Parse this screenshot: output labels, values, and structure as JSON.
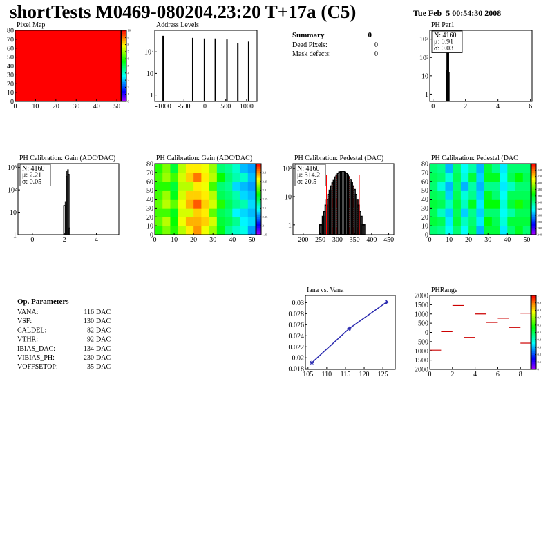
{
  "header": {
    "title": "shortTests M0469-080204.23:20 T+17a (C5)",
    "date": "Tue Feb  5 00:54:30 2008"
  },
  "summary": {
    "title": "Summary",
    "total": 0,
    "rows": [
      {
        "label": "Dead Pixels:",
        "value": 0
      },
      {
        "label": "Mask defects:",
        "value": 0
      }
    ]
  },
  "op_parameters": {
    "title": "Op. Parameters",
    "rows": [
      {
        "name": "VANA:",
        "value": 116,
        "unit": "DAC"
      },
      {
        "name": "VSF:",
        "value": 130,
        "unit": "DAC"
      },
      {
        "name": "CALDEL:",
        "value": 82,
        "unit": "DAC"
      },
      {
        "name": "VTHR:",
        "value": 92,
        "unit": "DAC"
      },
      {
        "name": "IBIAS_DAC:",
        "value": 134,
        "unit": "DAC"
      },
      {
        "name": "VIBIAS_PH:",
        "value": 230,
        "unit": "DAC"
      },
      {
        "name": "VOFFSETOP:",
        "value": 35,
        "unit": "DAC"
      }
    ]
  },
  "chart_data": [
    {
      "type": "heatmap",
      "title": "Pixel Map",
      "xlim": [
        0,
        52
      ],
      "ylim": [
        0,
        80
      ],
      "xticks": [
        0,
        10,
        20,
        30,
        40,
        50
      ],
      "yticks": [
        0,
        10,
        20,
        30,
        40,
        50,
        60,
        70,
        80
      ],
      "xbins": [
        0,
        52
      ],
      "ybins": [
        0,
        80
      ],
      "z": [
        [
          10
        ]
      ],
      "zlim": [
        0,
        10
      ],
      "zticks": [
        0,
        1,
        2,
        3,
        4,
        5,
        6,
        7,
        8,
        9,
        10
      ]
    },
    {
      "type": "spikes",
      "title": "Address Levels",
      "log_y": true,
      "xlim": [
        -1200,
        1250
      ],
      "ylim": [
        0.5,
        1000
      ],
      "xticks": [
        -1000,
        -500,
        0,
        500,
        1000
      ],
      "yticks": [
        1,
        10,
        {
          "value": 100,
          "label": "10²"
        }
      ],
      "x": [
        -1000,
        -290,
        -10,
        250,
        530,
        790,
        1050
      ],
      "values": [
        560,
        450,
        420,
        420,
        380,
        260,
        300
      ],
      "color": "#000000"
    },
    {
      "type": "histogram",
      "title": "PH Par1",
      "log_y": true,
      "xlim": [
        -0.2,
        6.1
      ],
      "ylim": [
        0.4,
        3000
      ],
      "xticks": [
        0,
        2,
        4,
        6
      ],
      "yticks": [
        1,
        10,
        {
          "value": 100,
          "label": "10²"
        },
        {
          "value": 1000,
          "label": "10³"
        }
      ],
      "bins": [
        0.82,
        0.85,
        0.88,
        0.91,
        0.94,
        0.97,
        1.0
      ],
      "values": [
        20,
        450,
        480,
        470,
        300,
        15
      ],
      "stats": [
        {
          "text": "N: 4160",
          "color": "#000000"
        },
        {
          "text": "μ: 0.91",
          "color": "#000000"
        },
        {
          "text": "σ: 0.03",
          "color": "#000000"
        }
      ]
    },
    {
      "type": "histogram",
      "title": "PH Calibration: Gain (ADC/DAC)",
      "log_y": true,
      "xlim": [
        -0.9,
        5.4
      ],
      "ylim": [
        1,
        1500
      ],
      "xticks": [
        0,
        2,
        4
      ],
      "yticks": [
        1,
        10,
        {
          "value": 100,
          "label": "10²"
        },
        {
          "value": 1000,
          "label": "10³"
        }
      ],
      "bins": [
        1.95,
        2.05,
        2.1,
        2.15,
        2.2,
        2.25,
        2.3,
        2.35
      ],
      "values": [
        20,
        30,
        400,
        700,
        800,
        500,
        2
      ],
      "stats": [
        {
          "text": "N: 4160",
          "color": "#000000"
        },
        {
          "text": "μ: 2.21",
          "color": "#000000"
        },
        {
          "text": "σ: 0.05",
          "color": "#000000"
        }
      ]
    },
    {
      "type": "heatmap",
      "title": "PH Calibration: Gain (ADC/DAC)",
      "xlim": [
        0,
        52
      ],
      "ylim": [
        0,
        80
      ],
      "xticks": [
        0,
        10,
        20,
        30,
        40,
        50
      ],
      "yticks": [
        0,
        10,
        20,
        30,
        40,
        50,
        60,
        70,
        80
      ],
      "xbins": [
        0,
        4,
        8,
        12,
        16,
        20,
        24,
        28,
        32,
        36,
        40,
        44,
        48,
        52
      ],
      "ybins": [
        0,
        10,
        20,
        30,
        40,
        50,
        60,
        70,
        80
      ],
      "z": [
        [
          2.19,
          2.22,
          2.19,
          2.24,
          2.27,
          2.3,
          2.26,
          2.23,
          2.17,
          2.13,
          2.11,
          2.1,
          2.06
        ],
        [
          2.21,
          2.24,
          2.18,
          2.26,
          2.29,
          2.29,
          2.28,
          2.25,
          2.16,
          2.15,
          2.13,
          2.09,
          2.08
        ],
        [
          2.2,
          2.2,
          2.17,
          2.25,
          2.25,
          2.28,
          2.27,
          2.21,
          2.15,
          2.14,
          2.09,
          2.08,
          2.07
        ],
        [
          2.21,
          2.24,
          2.21,
          2.26,
          2.29,
          2.32,
          2.28,
          2.25,
          2.19,
          2.15,
          2.13,
          2.12,
          2.08
        ],
        [
          2.2,
          2.23,
          2.17,
          2.25,
          2.28,
          2.28,
          2.27,
          2.24,
          2.15,
          2.14,
          2.12,
          2.08,
          2.07
        ],
        [
          2.19,
          2.19,
          2.16,
          2.24,
          2.24,
          2.27,
          2.26,
          2.2,
          2.14,
          2.13,
          2.08,
          2.07,
          2.06
        ],
        [
          2.2,
          2.23,
          2.2,
          2.25,
          2.28,
          2.31,
          2.27,
          2.24,
          2.18,
          2.14,
          2.12,
          2.11,
          2.07
        ],
        [
          2.19,
          2.22,
          2.16,
          2.24,
          2.27,
          2.27,
          2.26,
          2.23,
          2.14,
          2.13,
          2.11,
          2.07,
          2.06
        ]
      ],
      "zlim": [
        1.95,
        2.35
      ],
      "zticks": [
        1.95,
        2,
        2.05,
        2.1,
        2.15,
        2.2,
        2.25,
        2.3
      ]
    },
    {
      "type": "histogram",
      "title": "PH Calibration: Pedestal (DAC)",
      "log_y": true,
      "xlim": [
        170,
        465
      ],
      "ylim": [
        0.45,
        150
      ],
      "xticks": [
        200,
        250,
        300,
        350,
        400,
        450
      ],
      "yticks": [
        1,
        10,
        {
          "value": 100,
          "label": "10²"
        }
      ],
      "bins": [
        248,
        252,
        256,
        260,
        264,
        268,
        272,
        276,
        280,
        284,
        288,
        292,
        296,
        300,
        304,
        308,
        312,
        316,
        320,
        324,
        328,
        332,
        336,
        340,
        344,
        348,
        352,
        356,
        360,
        364,
        368,
        372,
        376,
        380
      ],
      "values": [
        1,
        1,
        2,
        3,
        5,
        8,
        12,
        17,
        24,
        31,
        40,
        50,
        59,
        68,
        75,
        79,
        81,
        80,
        75,
        69,
        60,
        51,
        41,
        32,
        24,
        18,
        12,
        8,
        5,
        3,
        2,
        1,
        1
      ],
      "fit_range": [
        268,
        364
      ],
      "fit_color": "#ff0000",
      "stats": [
        {
          "text": "N: 4160",
          "color": "#000000"
        },
        {
          "text": "μ: 314.2",
          "color": "#ff0000"
        },
        {
          "text": "σ: 20.5",
          "color": "#ff0000"
        }
      ]
    },
    {
      "type": "heatmap",
      "title": "PH Calibration: Pedestal (DAC",
      "xlim": [
        0,
        52
      ],
      "ylim": [
        0,
        80
      ],
      "xticks": [
        0,
        10,
        20,
        30,
        40,
        50
      ],
      "yticks": [
        0,
        10,
        20,
        30,
        40,
        50,
        60,
        70,
        80
      ],
      "xbins": [
        0,
        4,
        8,
        12,
        16,
        20,
        24,
        28,
        32,
        36,
        40,
        44,
        48,
        52
      ],
      "ybins": [
        0,
        10,
        20,
        30,
        40,
        50,
        60,
        70,
        80
      ],
      "z": [
        [
          345,
          340,
          320,
          345,
          320,
          350,
          305,
          355,
          355,
          315,
          345,
          360,
          345
        ],
        [
          355,
          350,
          315,
          355,
          330,
          345,
          315,
          365,
          350,
          325,
          355,
          355,
          355
        ],
        [
          350,
          330,
          310,
          350,
          310,
          340,
          310,
          345,
          345,
          320,
          335,
          350,
          350
        ],
        [
          355,
          350,
          330,
          355,
          330,
          360,
          315,
          365,
          365,
          325,
          355,
          370,
          355
        ],
        [
          350,
          345,
          310,
          350,
          325,
          340,
          310,
          360,
          345,
          320,
          350,
          350,
          350
        ],
        [
          345,
          325,
          305,
          345,
          305,
          335,
          305,
          340,
          340,
          315,
          330,
          345,
          345
        ],
        [
          350,
          345,
          325,
          350,
          325,
          355,
          310,
          360,
          360,
          320,
          350,
          365,
          350
        ],
        [
          345,
          340,
          305,
          345,
          320,
          335,
          305,
          355,
          340,
          315,
          345,
          345,
          345
        ]
      ],
      "zlim": [
        240,
        460
      ],
      "zticks": [
        240,
        260,
        280,
        300,
        320,
        340,
        360,
        380,
        400,
        420,
        440
      ]
    },
    {
      "type": "line",
      "title": "Iana vs. Vana",
      "xlim": [
        104.3,
        128.3
      ],
      "ylim": [
        0.0179,
        0.0313
      ],
      "xticks": [
        105,
        110,
        115,
        120,
        125
      ],
      "yticks": [
        0.018,
        0.02,
        0.022,
        0.024,
        0.026,
        0.028,
        0.03
      ],
      "x": [
        106,
        116,
        126
      ],
      "values": [
        0.0191,
        0.0253,
        0.0301
      ],
      "color": "#2b2bb0"
    },
    {
      "type": "segments",
      "title": "PHRange",
      "xlim": [
        0,
        8.9
      ],
      "ylim": [
        -2000,
        2000
      ],
      "xticks": [
        0,
        2,
        4,
        6,
        8
      ],
      "yticks": [
        {
          "value": -2000,
          "label": "2000"
        },
        {
          "value": -1500,
          "label": "1500"
        },
        {
          "value": -1000,
          "label": "1000"
        },
        {
          "value": -500,
          "label": "500"
        },
        0,
        500,
        1000,
        1500,
        2000
      ],
      "x": [
        0,
        1,
        2,
        3,
        4,
        5,
        6,
        7,
        8,
        8
      ],
      "values": [
        -960,
        40,
        1460,
        -270,
        1000,
        540,
        770,
        270,
        1040,
        -580
      ],
      "color": "#cc0000",
      "zlim": [
        0,
        1
      ],
      "zticks": [
        0,
        0.1,
        0.2,
        0.3,
        0.4,
        0.5,
        0.6,
        0.7,
        0.8,
        0.9,
        1
      ]
    }
  ]
}
